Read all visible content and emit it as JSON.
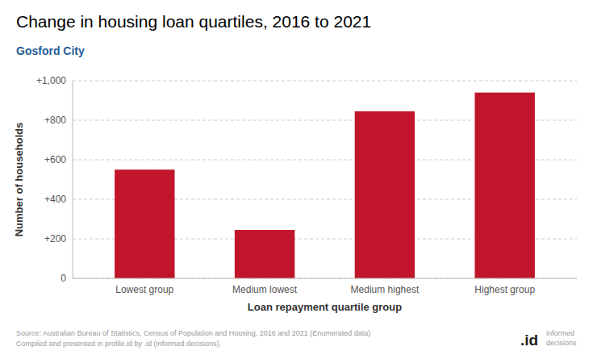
{
  "chart_data": {
    "type": "bar",
    "title": "Change in housing loan quartiles, 2016 to 2021",
    "subtitle": "Gosford City",
    "categories": [
      "Lowest group",
      "Medium lowest",
      "Medium highest",
      "Highest group"
    ],
    "values": [
      550,
      245,
      845,
      940
    ],
    "color": "#c0152a",
    "xlabel": "Loan repayment quartile group",
    "ylabel": "Number of households",
    "ylim": [
      0,
      1000
    ],
    "yticks": [
      0,
      {
        "value": 200,
        "label": "+200"
      },
      {
        "value": 400,
        "label": "+400"
      },
      {
        "value": 600,
        "label": "+600"
      },
      {
        "value": 800,
        "label": "+800"
      },
      {
        "value": 1000,
        "label": "+1,000"
      }
    ],
    "grid": true,
    "source": "Source: Australian Bureau of Statistics, Census of Population and Housing, 2016 and 2021 (Enumerated data)\nCompiled and presented in profile.id by .id (informed decisions).",
    "annotations": [
      ".id",
      "informed\ndecisions"
    ]
  }
}
